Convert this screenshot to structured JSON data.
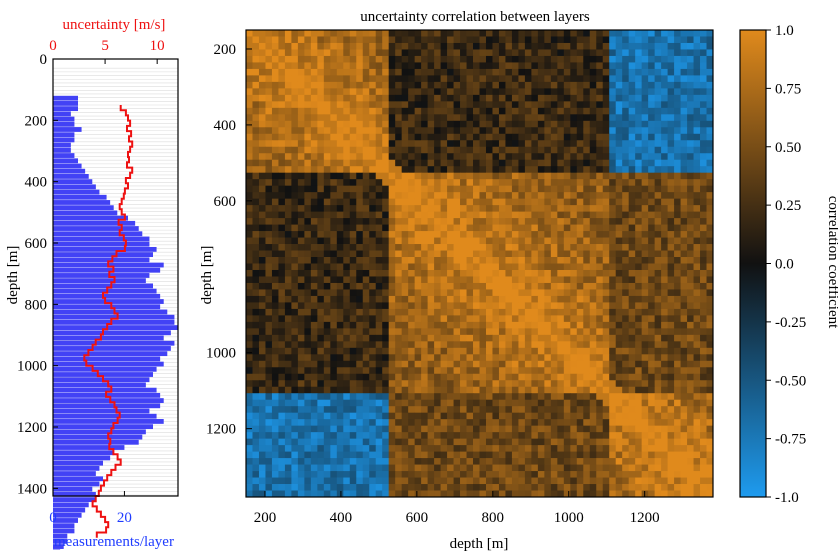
{
  "chart_data": [
    {
      "type": "bar",
      "orientation": "horizontal",
      "title": "",
      "ylabel": "depth [m]",
      "y_ticks": [
        0,
        200,
        400,
        600,
        800,
        1000,
        1200,
        1400
      ],
      "y_tick_labels": [
        "0",
        "200",
        "400",
        "600",
        "800",
        "1000",
        "1200",
        "1400"
      ],
      "ylim": [
        0,
        1425
      ],
      "x_bottom": {
        "label": "measurements/layer",
        "ticks": [
          0,
          20
        ],
        "tick_labels": [
          "0",
          "20"
        ],
        "xlim": [
          0,
          35
        ],
        "color": "#1f3cff"
      },
      "x_top": {
        "label": "uncertainty [m/s]",
        "ticks": [
          0,
          5,
          10
        ],
        "tick_labels": [
          "0",
          "5",
          "10"
        ],
        "xlim": [
          0,
          12
        ],
        "color": "#ee1111"
      },
      "series": [
        {
          "name": "measurements/layer",
          "kind": "bar",
          "color": "#4242f5",
          "depth_start": 120,
          "layer_thickness": 17,
          "values": [
            7,
            7,
            7,
            5,
            6,
            6,
            8,
            6,
            6,
            5,
            5,
            6,
            7,
            8,
            9,
            10,
            11,
            12,
            13,
            15,
            16,
            17,
            18,
            21,
            23,
            24,
            25,
            27,
            27,
            29,
            28,
            27,
            31,
            30,
            27,
            26,
            28,
            29,
            30,
            31,
            30,
            32,
            34,
            34,
            35,
            33,
            31,
            34,
            33,
            32,
            30,
            31,
            29,
            28,
            27,
            26,
            29,
            30,
            31,
            30,
            27,
            29,
            31,
            28,
            26,
            25,
            24,
            20,
            17,
            16,
            14,
            13,
            12,
            14,
            13,
            11,
            12,
            12,
            10,
            9,
            8,
            7,
            6,
            6,
            4,
            4,
            3,
            2
          ],
          "depth_end": 1425
        },
        {
          "name": "uncertainty",
          "kind": "step-line",
          "color": "#ee1111",
          "depth_start": 150,
          "layer_thickness": 17,
          "values": [
            6.5,
            7.0,
            7.2,
            7.4,
            7.1,
            7.5,
            7.3,
            7.6,
            7.4,
            7.2,
            7.3,
            7.1,
            7.6,
            7.4,
            7.0,
            7.2,
            6.9,
            6.8,
            6.6,
            6.4,
            6.6,
            6.9,
            6.3,
            6.6,
            6.4,
            6.8,
            7.0,
            6.9,
            6.1,
            5.7,
            5.3,
            5.8,
            5.4,
            5.9,
            5.6,
            5.2,
            4.8,
            5.0,
            5.6,
            5.9,
            6.2,
            5.6,
            5.2,
            4.8,
            4.6,
            4.1,
            3.8,
            3.4,
            3.0,
            3.2,
            3.8,
            4.3,
            4.8,
            5.3,
            5.6,
            5.1,
            5.5,
            5.9,
            6.1,
            6.4,
            6.2,
            5.8,
            5.6,
            5.3,
            5.5,
            5.4,
            5.8,
            6.2,
            6.5,
            6.0,
            5.6,
            5.2,
            4.9,
            4.6,
            4.4,
            4.1,
            3.8,
            4.2,
            4.6,
            5.0,
            5.3,
            5.1,
            4.2
          ]
        }
      ]
    },
    {
      "type": "heatmap",
      "title": "uncertainty correlation between layers",
      "xlabel": "depth [m]",
      "ylabel": "depth [m]",
      "x_ticks": [
        200,
        400,
        600,
        800,
        1000,
        1200
      ],
      "x_tick_labels": [
        "200",
        "400",
        "600",
        "800",
        "1000",
        "1200"
      ],
      "y_ticks": [
        400,
        600,
        1000,
        1200
      ],
      "y_tick_labels": [
        "400",
        "600",
        "1000",
        "1200"
      ],
      "y_ticks_top": [
        200
      ],
      "y_tick_labels_top": [
        "200"
      ],
      "xlim": [
        150,
        1380
      ],
      "ylim": [
        150,
        1380
      ],
      "grid": {
        "cells": 72
      },
      "blocks": [
        {
          "start": 150,
          "end": 520
        },
        {
          "start": 520,
          "end": 1110
        },
        {
          "start": 1110,
          "end": 1380
        }
      ],
      "block_correlation": [
        [
          1.0,
          0.2,
          -0.7
        ],
        [
          0.2,
          1.0,
          0.45
        ],
        [
          -0.7,
          0.45,
          1.0
        ]
      ],
      "colorbar": {
        "label": "correlation coefficient",
        "range": [
          -1.0,
          1.0
        ],
        "ticks": [
          1.0,
          0.75,
          0.5,
          0.25,
          0.0,
          -0.25,
          -0.5,
          -0.75,
          -1.0
        ],
        "tick_labels": [
          "1.0",
          "0.75",
          "0.50",
          "0.25",
          "0.0",
          "-0.25",
          "-0.50",
          "-0.75",
          "-1.0"
        ],
        "color_positive": "#e08a1c",
        "color_zero": "#111111",
        "color_negative": "#1e9bef"
      }
    }
  ]
}
